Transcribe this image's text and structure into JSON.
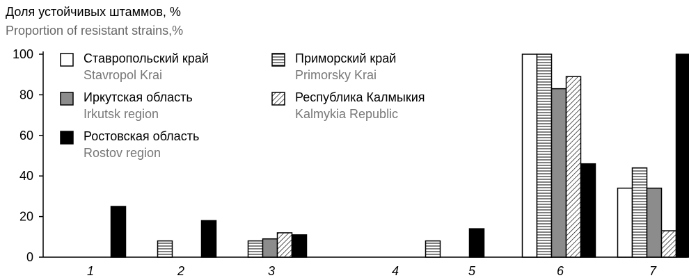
{
  "chart_data": {
    "type": "bar",
    "ylabel_ru": "Доля устойчивых штаммов, %",
    "ylabel_en": "Proportion of resistant strains,%",
    "yticks": [
      "0",
      "20",
      "40",
      "60",
      "80",
      "100"
    ],
    "ylim": [
      0,
      100
    ],
    "categories": [
      "1",
      "2",
      "3",
      "4",
      "5",
      "6",
      "7"
    ],
    "series": [
      {
        "name": "Ставропольский край",
        "name_en": "Stavropol Krai",
        "fill": "white",
        "values": [
          null,
          null,
          null,
          null,
          null,
          100,
          34
        ]
      },
      {
        "name": "Приморский край",
        "name_en": "Primorsky Krai",
        "fill": "hlines",
        "values": [
          null,
          8,
          8,
          null,
          8,
          100,
          44
        ]
      },
      {
        "name": "Иркутская область",
        "name_en": "Irkutsk region",
        "fill": "gray",
        "values": [
          null,
          null,
          9,
          null,
          null,
          83,
          34
        ]
      },
      {
        "name": "Республика Калмыкия",
        "name_en": "Kalmykia Republic",
        "fill": "diag",
        "values": [
          null,
          null,
          12,
          null,
          null,
          89,
          13
        ]
      },
      {
        "name": "Ростовская область",
        "name_en": "Rostov region",
        "fill": "black",
        "values": [
          25,
          18,
          11,
          null,
          14,
          46,
          100
        ]
      }
    ],
    "grid": false,
    "legend_position": "top-left"
  },
  "colors": {
    "bar_gray": "#8c8c8c",
    "bar_black": "#000000",
    "text_gray": "#666666"
  }
}
